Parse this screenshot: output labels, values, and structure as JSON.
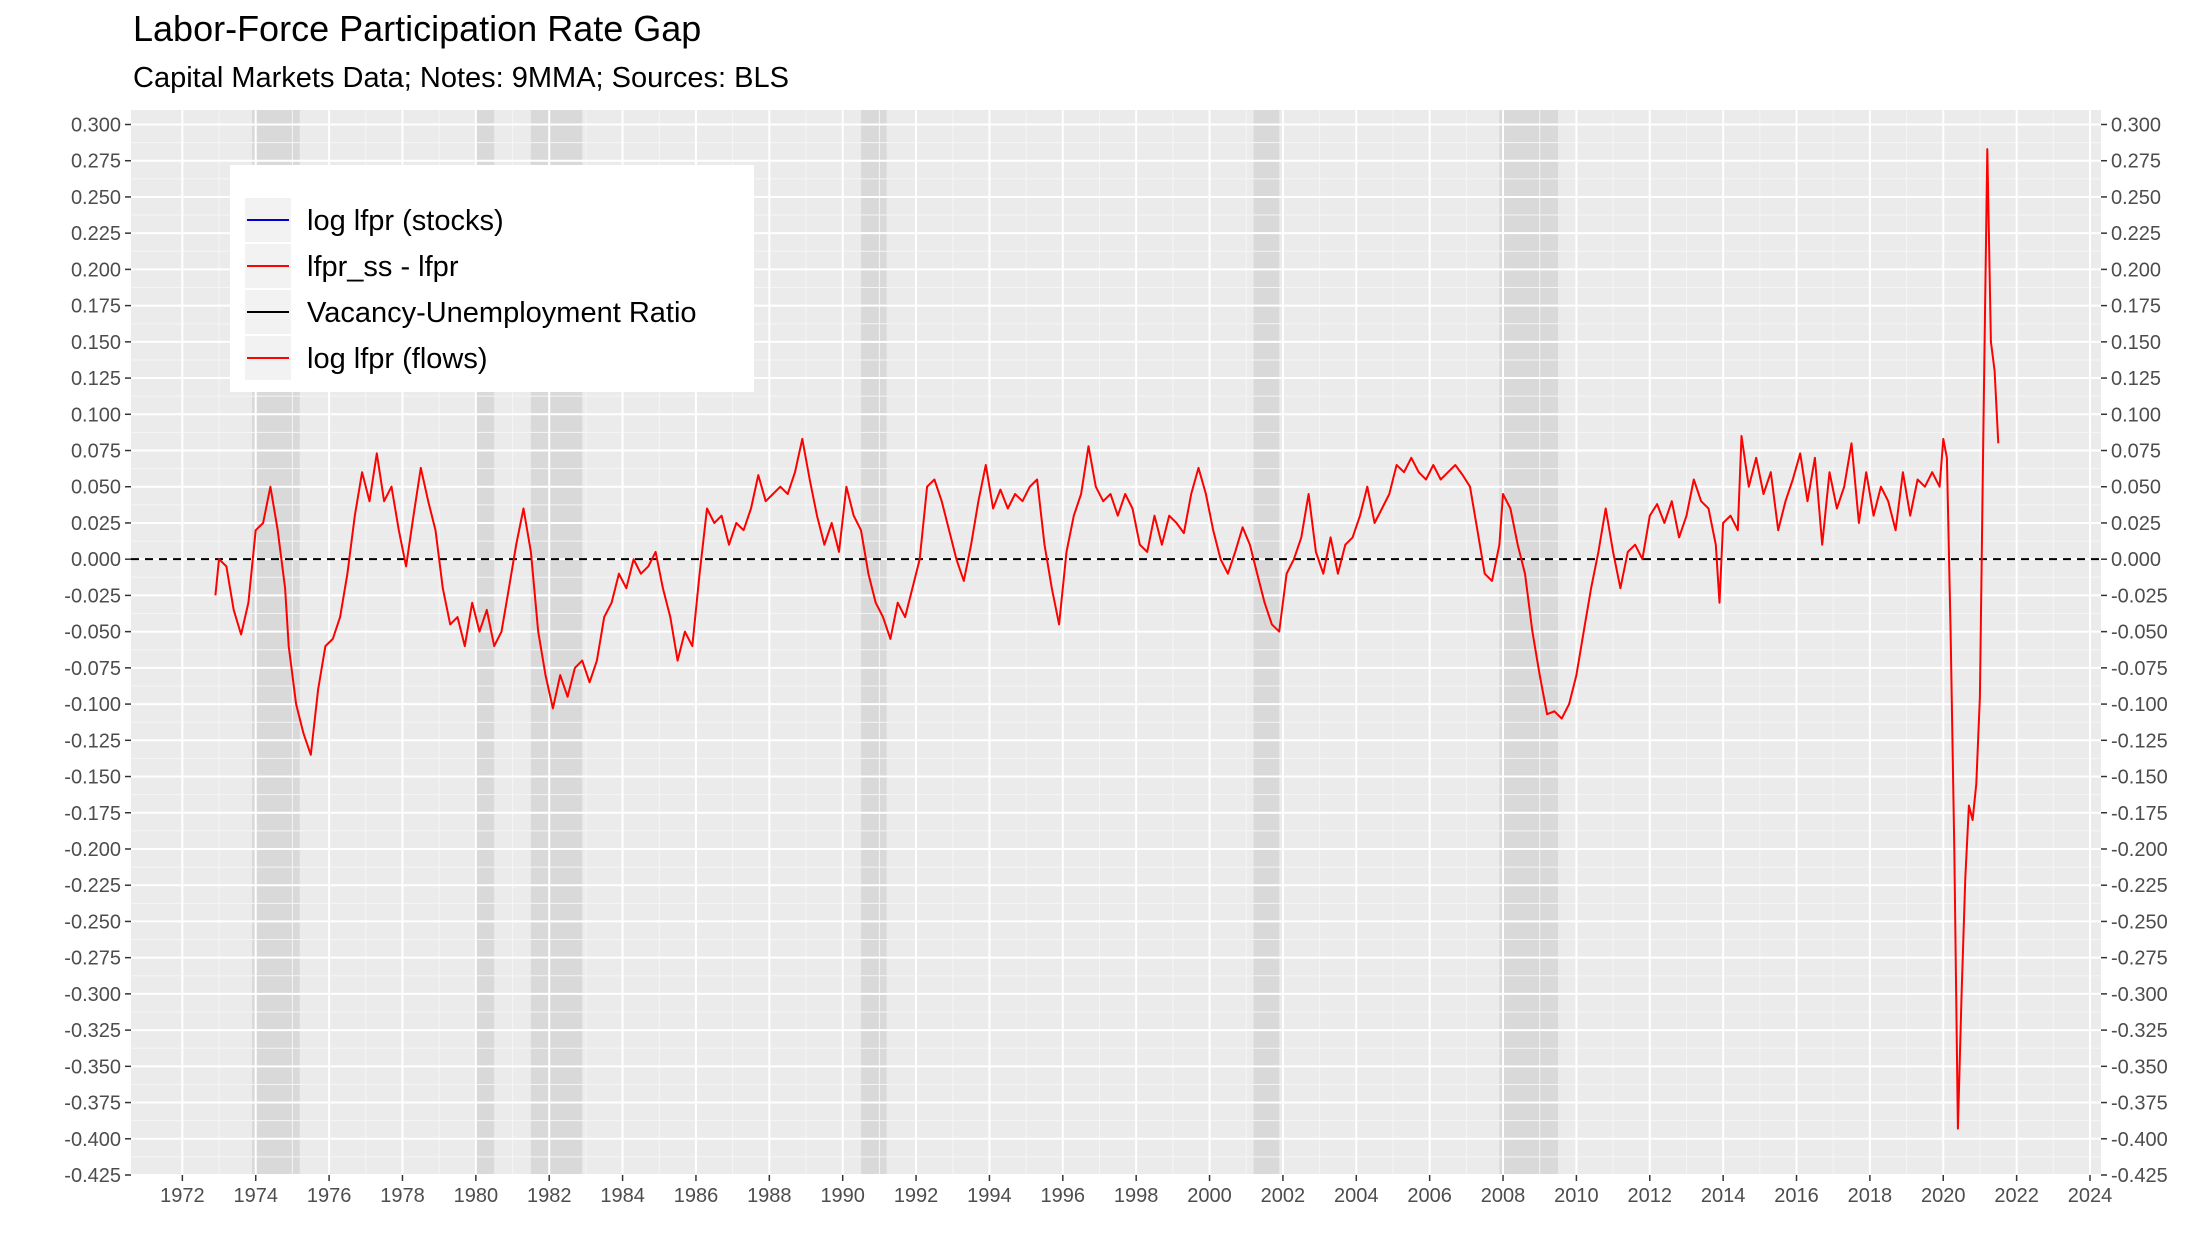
{
  "chart_data": {
    "type": "line",
    "title": "Labor-Force Participation Rate Gap",
    "subtitle": "Capital Markets Data; Notes: 9MMA; Sources: BLS",
    "xlabel": "",
    "ylabel": "",
    "xlim": [
      1970.6,
      2024.3
    ],
    "ylim": [
      -0.425,
      0.31
    ],
    "x_ticks": [
      1972,
      1974,
      1976,
      1978,
      1980,
      1982,
      1984,
      1986,
      1988,
      1990,
      1992,
      1994,
      1996,
      1998,
      2000,
      2002,
      2004,
      2006,
      2008,
      2010,
      2012,
      2014,
      2016,
      2018,
      2020,
      2022,
      2024
    ],
    "y_ticks": [
      0.3,
      0.275,
      0.25,
      0.225,
      0.2,
      0.175,
      0.15,
      0.125,
      0.1,
      0.075,
      0.05,
      0.025,
      0.0,
      -0.025,
      -0.05,
      -0.075,
      -0.1,
      -0.125,
      -0.15,
      -0.175,
      -0.2,
      -0.225,
      -0.25,
      -0.275,
      -0.3,
      -0.325,
      -0.35,
      -0.375,
      -0.4,
      -0.425
    ],
    "y_tick_format": "3 decimals",
    "secondary_y_axis": "mirrored, same ticks",
    "grid": true,
    "reference_line": {
      "y": 0.0,
      "style": "dashed",
      "color": "#000000"
    },
    "recessions": [
      [
        1973.9,
        1975.2
      ],
      [
        1980.0,
        1980.5
      ],
      [
        1981.5,
        1982.9
      ],
      [
        1990.5,
        1991.2
      ],
      [
        2001.2,
        2001.9
      ],
      [
        2007.9,
        2009.5
      ]
    ],
    "legend": {
      "position": "top-left",
      "entries": [
        {
          "label": "log lfpr (stocks)",
          "color": "#0000cc"
        },
        {
          "label": "lfpr_ss - lfpr",
          "color": "#ff0000"
        },
        {
          "label": "Vacancy-Unemployment Ratio",
          "color": "#000000"
        },
        {
          "label": "log lfpr (flows)",
          "color": "#ff0000"
        }
      ]
    },
    "series": [
      {
        "name": "lfpr_ss - lfpr",
        "color": "#ff0000",
        "points": [
          [
            1972.9,
            -0.025
          ],
          [
            1973.0,
            0.0
          ],
          [
            1973.2,
            -0.005
          ],
          [
            1973.4,
            -0.035
          ],
          [
            1973.6,
            -0.052
          ],
          [
            1973.8,
            -0.03
          ],
          [
            1974.0,
            0.02
          ],
          [
            1974.2,
            0.025
          ],
          [
            1974.4,
            0.05
          ],
          [
            1974.6,
            0.02
          ],
          [
            1974.8,
            -0.02
          ],
          [
            1974.9,
            -0.06
          ],
          [
            1975.1,
            -0.1
          ],
          [
            1975.3,
            -0.12
          ],
          [
            1975.5,
            -0.135
          ],
          [
            1975.7,
            -0.09
          ],
          [
            1975.9,
            -0.06
          ],
          [
            1976.1,
            -0.055
          ],
          [
            1976.3,
            -0.04
          ],
          [
            1976.5,
            -0.01
          ],
          [
            1976.7,
            0.03
          ],
          [
            1976.9,
            0.06
          ],
          [
            1977.1,
            0.04
          ],
          [
            1977.3,
            0.073
          ],
          [
            1977.5,
            0.04
          ],
          [
            1977.7,
            0.05
          ],
          [
            1977.9,
            0.02
          ],
          [
            1978.1,
            -0.005
          ],
          [
            1978.3,
            0.03
          ],
          [
            1978.5,
            0.063
          ],
          [
            1978.7,
            0.04
          ],
          [
            1978.9,
            0.02
          ],
          [
            1979.1,
            -0.02
          ],
          [
            1979.3,
            -0.045
          ],
          [
            1979.5,
            -0.04
          ],
          [
            1979.7,
            -0.06
          ],
          [
            1979.9,
            -0.03
          ],
          [
            1980.1,
            -0.05
          ],
          [
            1980.3,
            -0.035
          ],
          [
            1980.5,
            -0.06
          ],
          [
            1980.7,
            -0.05
          ],
          [
            1980.9,
            -0.02
          ],
          [
            1981.1,
            0.01
          ],
          [
            1981.3,
            0.035
          ],
          [
            1981.5,
            0.005
          ],
          [
            1981.7,
            -0.05
          ],
          [
            1981.9,
            -0.08
          ],
          [
            1982.1,
            -0.103
          ],
          [
            1982.3,
            -0.08
          ],
          [
            1982.5,
            -0.095
          ],
          [
            1982.7,
            -0.075
          ],
          [
            1982.9,
            -0.07
          ],
          [
            1983.1,
            -0.085
          ],
          [
            1983.3,
            -0.07
          ],
          [
            1983.5,
            -0.04
          ],
          [
            1983.7,
            -0.03
          ],
          [
            1983.9,
            -0.01
          ],
          [
            1984.1,
            -0.02
          ],
          [
            1984.3,
            0.0
          ],
          [
            1984.5,
            -0.01
          ],
          [
            1984.7,
            -0.005
          ],
          [
            1984.9,
            0.005
          ],
          [
            1985.1,
            -0.02
          ],
          [
            1985.3,
            -0.04
          ],
          [
            1985.5,
            -0.07
          ],
          [
            1985.7,
            -0.05
          ],
          [
            1985.9,
            -0.06
          ],
          [
            1986.1,
            -0.01
          ],
          [
            1986.3,
            0.035
          ],
          [
            1986.5,
            0.025
          ],
          [
            1986.7,
            0.03
          ],
          [
            1986.9,
            0.01
          ],
          [
            1987.1,
            0.025
          ],
          [
            1987.3,
            0.02
          ],
          [
            1987.5,
            0.035
          ],
          [
            1987.7,
            0.058
          ],
          [
            1987.9,
            0.04
          ],
          [
            1988.1,
            0.045
          ],
          [
            1988.3,
            0.05
          ],
          [
            1988.5,
            0.045
          ],
          [
            1988.7,
            0.06
          ],
          [
            1988.9,
            0.083
          ],
          [
            1989.1,
            0.055
          ],
          [
            1989.3,
            0.03
          ],
          [
            1989.5,
            0.01
          ],
          [
            1989.7,
            0.025
          ],
          [
            1989.9,
            0.005
          ],
          [
            1990.1,
            0.05
          ],
          [
            1990.3,
            0.03
          ],
          [
            1990.5,
            0.02
          ],
          [
            1990.7,
            -0.01
          ],
          [
            1990.9,
            -0.03
          ],
          [
            1991.1,
            -0.04
          ],
          [
            1991.3,
            -0.055
          ],
          [
            1991.5,
            -0.03
          ],
          [
            1991.7,
            -0.04
          ],
          [
            1991.9,
            -0.02
          ],
          [
            1992.1,
            0.0
          ],
          [
            1992.3,
            0.05
          ],
          [
            1992.5,
            0.055
          ],
          [
            1992.7,
            0.04
          ],
          [
            1992.9,
            0.02
          ],
          [
            1993.1,
            0.0
          ],
          [
            1993.3,
            -0.015
          ],
          [
            1993.5,
            0.01
          ],
          [
            1993.7,
            0.04
          ],
          [
            1993.9,
            0.065
          ],
          [
            1994.1,
            0.035
          ],
          [
            1994.3,
            0.048
          ],
          [
            1994.5,
            0.035
          ],
          [
            1994.7,
            0.045
          ],
          [
            1994.9,
            0.04
          ],
          [
            1995.1,
            0.05
          ],
          [
            1995.3,
            0.055
          ],
          [
            1995.5,
            0.01
          ],
          [
            1995.7,
            -0.02
          ],
          [
            1995.9,
            -0.045
          ],
          [
            1996.1,
            0.005
          ],
          [
            1996.3,
            0.03
          ],
          [
            1996.5,
            0.045
          ],
          [
            1996.7,
            0.078
          ],
          [
            1996.9,
            0.05
          ],
          [
            1997.1,
            0.04
          ],
          [
            1997.3,
            0.045
          ],
          [
            1997.5,
            0.03
          ],
          [
            1997.7,
            0.045
          ],
          [
            1997.9,
            0.035
          ],
          [
            1998.1,
            0.01
          ],
          [
            1998.3,
            0.005
          ],
          [
            1998.5,
            0.03
          ],
          [
            1998.7,
            0.01
          ],
          [
            1998.9,
            0.03
          ],
          [
            1999.1,
            0.025
          ],
          [
            1999.3,
            0.018
          ],
          [
            1999.5,
            0.045
          ],
          [
            1999.7,
            0.063
          ],
          [
            1999.9,
            0.045
          ],
          [
            2000.1,
            0.02
          ],
          [
            2000.3,
            0.0
          ],
          [
            2000.5,
            -0.01
          ],
          [
            2000.7,
            0.005
          ],
          [
            2000.9,
            0.022
          ],
          [
            2001.1,
            0.01
          ],
          [
            2001.3,
            -0.01
          ],
          [
            2001.5,
            -0.03
          ],
          [
            2001.7,
            -0.045
          ],
          [
            2001.9,
            -0.05
          ],
          [
            2002.1,
            -0.01
          ],
          [
            2002.3,
            0.0
          ],
          [
            2002.5,
            0.015
          ],
          [
            2002.7,
            0.045
          ],
          [
            2002.9,
            0.005
          ],
          [
            2003.1,
            -0.01
          ],
          [
            2003.3,
            0.015
          ],
          [
            2003.5,
            -0.01
          ],
          [
            2003.7,
            0.01
          ],
          [
            2003.9,
            0.015
          ],
          [
            2004.1,
            0.03
          ],
          [
            2004.3,
            0.05
          ],
          [
            2004.5,
            0.025
          ],
          [
            2004.7,
            0.035
          ],
          [
            2004.9,
            0.045
          ],
          [
            2005.1,
            0.065
          ],
          [
            2005.3,
            0.06
          ],
          [
            2005.5,
            0.07
          ],
          [
            2005.7,
            0.06
          ],
          [
            2005.9,
            0.055
          ],
          [
            2006.1,
            0.065
          ],
          [
            2006.3,
            0.055
          ],
          [
            2006.5,
            0.06
          ],
          [
            2006.7,
            0.065
          ],
          [
            2006.9,
            0.058
          ],
          [
            2007.1,
            0.05
          ],
          [
            2007.3,
            0.02
          ],
          [
            2007.5,
            -0.01
          ],
          [
            2007.7,
            -0.015
          ],
          [
            2007.9,
            0.01
          ],
          [
            2008.0,
            0.045
          ],
          [
            2008.2,
            0.035
          ],
          [
            2008.4,
            0.01
          ],
          [
            2008.6,
            -0.01
          ],
          [
            2008.8,
            -0.05
          ],
          [
            2009.0,
            -0.08
          ],
          [
            2009.2,
            -0.107
          ],
          [
            2009.4,
            -0.105
          ],
          [
            2009.6,
            -0.11
          ],
          [
            2009.8,
            -0.1
          ],
          [
            2010.0,
            -0.08
          ],
          [
            2010.2,
            -0.05
          ],
          [
            2010.4,
            -0.02
          ],
          [
            2010.6,
            0.005
          ],
          [
            2010.8,
            0.035
          ],
          [
            2011.0,
            0.005
          ],
          [
            2011.2,
            -0.02
          ],
          [
            2011.4,
            0.005
          ],
          [
            2011.6,
            0.01
          ],
          [
            2011.8,
            0.0
          ],
          [
            2012.0,
            0.03
          ],
          [
            2012.2,
            0.038
          ],
          [
            2012.4,
            0.025
          ],
          [
            2012.6,
            0.04
          ],
          [
            2012.8,
            0.015
          ],
          [
            2013.0,
            0.03
          ],
          [
            2013.2,
            0.055
          ],
          [
            2013.4,
            0.04
          ],
          [
            2013.6,
            0.035
          ],
          [
            2013.8,
            0.01
          ],
          [
            2013.9,
            -0.03
          ],
          [
            2014.0,
            0.025
          ],
          [
            2014.2,
            0.03
          ],
          [
            2014.4,
            0.02
          ],
          [
            2014.5,
            0.085
          ],
          [
            2014.7,
            0.05
          ],
          [
            2014.9,
            0.07
          ],
          [
            2015.1,
            0.045
          ],
          [
            2015.3,
            0.06
          ],
          [
            2015.5,
            0.02
          ],
          [
            2015.7,
            0.04
          ],
          [
            2015.9,
            0.055
          ],
          [
            2016.1,
            0.073
          ],
          [
            2016.3,
            0.04
          ],
          [
            2016.5,
            0.07
          ],
          [
            2016.7,
            0.01
          ],
          [
            2016.9,
            0.06
          ],
          [
            2017.1,
            0.035
          ],
          [
            2017.3,
            0.05
          ],
          [
            2017.5,
            0.08
          ],
          [
            2017.7,
            0.025
          ],
          [
            2017.9,
            0.06
          ],
          [
            2018.1,
            0.03
          ],
          [
            2018.3,
            0.05
          ],
          [
            2018.5,
            0.04
          ],
          [
            2018.7,
            0.02
          ],
          [
            2018.9,
            0.06
          ],
          [
            2019.1,
            0.03
          ],
          [
            2019.3,
            0.055
          ],
          [
            2019.5,
            0.05
          ],
          [
            2019.7,
            0.06
          ],
          [
            2019.9,
            0.05
          ],
          [
            2020.0,
            0.083
          ],
          [
            2020.1,
            0.07
          ],
          [
            2020.2,
            -0.05
          ],
          [
            2020.3,
            -0.2
          ],
          [
            2020.4,
            -0.393
          ],
          [
            2020.5,
            -0.3
          ],
          [
            2020.6,
            -0.22
          ],
          [
            2020.7,
            -0.17
          ],
          [
            2020.8,
            -0.18
          ],
          [
            2020.9,
            -0.155
          ],
          [
            2021.0,
            -0.095
          ],
          [
            2021.1,
            0.1
          ],
          [
            2021.2,
            0.283
          ],
          [
            2021.3,
            0.15
          ],
          [
            2021.4,
            0.13
          ],
          [
            2021.5,
            0.08
          ]
        ]
      }
    ]
  }
}
